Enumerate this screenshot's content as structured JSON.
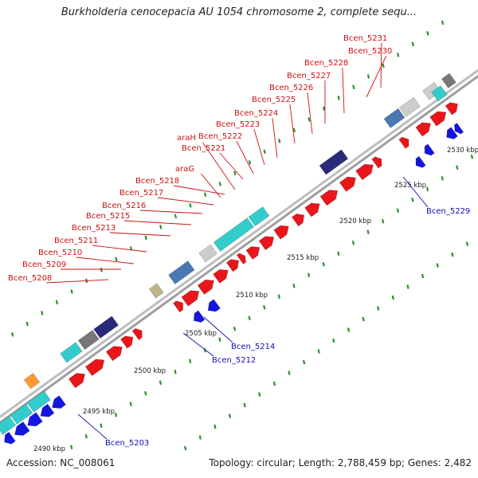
{
  "title": "Burkholderia cenocepacia AU 1054 chromosome 2, complete sequ...",
  "footer": {
    "accession": "Accession: NC_008061",
    "summary": "Topology: circular; Length: 2,788,459 bp; Genes: 2,482"
  },
  "colors": {
    "forward": "#e8161b",
    "reverse": "#1515e0",
    "cyan": "#33cccc",
    "steel": "#4a78b0",
    "grey": "#777777",
    "light_grey": "#cccccc",
    "navy": "#2a2a7a",
    "orange": "#ff9933",
    "khaki": "#bdb38a",
    "backbone": "#9e9e9e",
    "tick": "#2f8f2f",
    "label_top": "#cc1111",
    "label_bottom": "#1111aa"
  },
  "scale_ticks": [
    {
      "label": "2490 kbp"
    },
    {
      "label": "2495 kbp"
    },
    {
      "label": "2500 kbp"
    },
    {
      "label": "2505 kbp"
    },
    {
      "label": "2510 kbp"
    },
    {
      "label": "2515 kbp"
    },
    {
      "label": "2520 kbp"
    },
    {
      "label": "2525 kbp"
    },
    {
      "label": "2530 kbp"
    }
  ],
  "top_labels": [
    "Bcen_5208",
    "Bcen_5209",
    "Bcen_5210",
    "Bcen_5211",
    "Bcen_5213",
    "Bcen_5215",
    "Bcen_5216",
    "Bcen_5217",
    "Bcen_5218",
    "araG",
    "Bcen_5221",
    "araH",
    "Bcen_5222",
    "Bcen_5223",
    "Bcen_5224",
    "Bcen_5225",
    "Bcen_5226",
    "Bcen_5227",
    "Bcen_5228",
    "Bcen_5230",
    "Bcen_5231"
  ],
  "bottom_labels": [
    "Bcen_5203",
    "Bcen_5212",
    "Bcen_5214",
    "Bcen_5229"
  ]
}
